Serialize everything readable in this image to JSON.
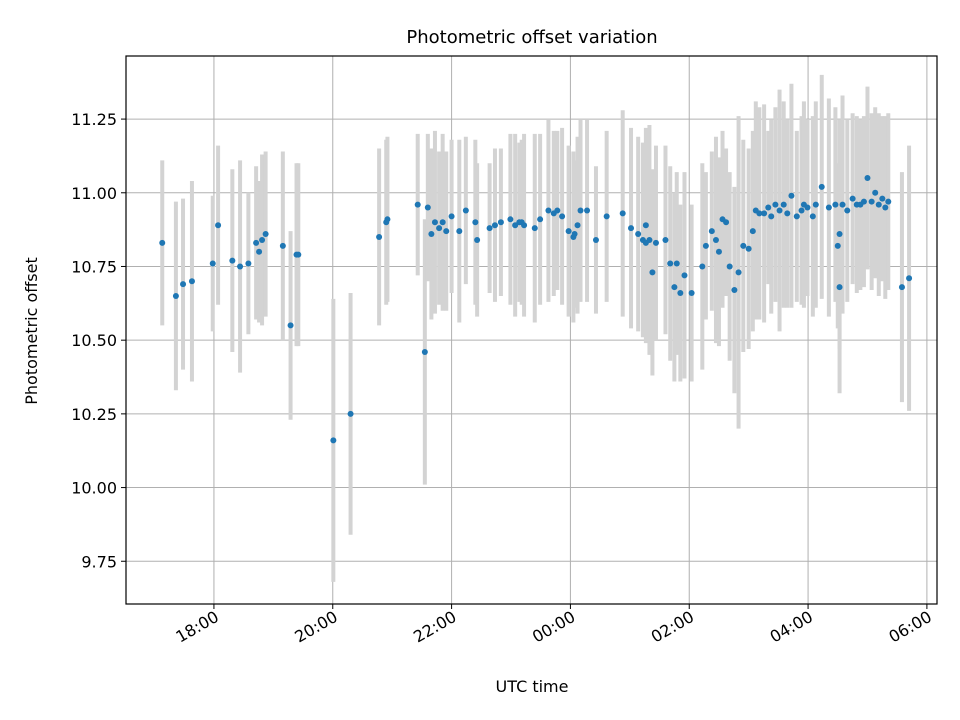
{
  "chart_data": {
    "type": "scatter",
    "title": "Photometric offset variation",
    "xlabel": "UTC time",
    "ylabel": "Photometric offset",
    "x_unit": "hours UTC (after 24:00 wraps to next day)",
    "xlim": [
      16.52,
      30.17
    ],
    "ylim": [
      9.605,
      11.464
    ],
    "x_ticks": [
      18,
      20,
      22,
      24,
      26,
      28,
      30
    ],
    "x_tick_labels": [
      "18:00",
      "20:00",
      "22:00",
      "00:00",
      "02:00",
      "04:00",
      "06:00"
    ],
    "y_ticks": [
      9.75,
      10.0,
      10.25,
      10.5,
      10.75,
      11.0,
      11.25
    ],
    "y_tick_labels": [
      "9.75",
      "10.00",
      "10.25",
      "10.50",
      "10.75",
      "11.00",
      "11.25"
    ],
    "grid": true,
    "colors": {
      "point": "#1f77b4",
      "errorbar": "#d3d3d3",
      "grid": "#b0b0b0"
    },
    "points": [
      [
        17.13,
        10.83,
        0.28
      ],
      [
        17.36,
        10.65,
        0.32
      ],
      [
        17.48,
        10.69,
        0.29
      ],
      [
        17.63,
        10.7,
        0.34
      ],
      [
        17.98,
        10.76,
        0.23
      ],
      [
        18.07,
        10.89,
        0.27
      ],
      [
        18.31,
        10.77,
        0.31
      ],
      [
        18.44,
        10.75,
        0.36
      ],
      [
        18.58,
        10.76,
        0.24
      ],
      [
        18.71,
        10.83,
        0.26
      ],
      [
        18.76,
        10.8,
        0.24
      ],
      [
        18.81,
        10.84,
        0.29
      ],
      [
        18.87,
        10.86,
        0.28
      ],
      [
        19.16,
        10.82,
        0.32
      ],
      [
        19.29,
        10.55,
        0.32
      ],
      [
        19.39,
        10.79,
        0.31
      ],
      [
        19.42,
        10.79,
        0.31
      ],
      [
        20.01,
        10.16,
        0.48
      ],
      [
        20.3,
        10.25,
        0.41
      ],
      [
        20.78,
        10.85,
        0.3
      ],
      [
        20.9,
        10.9,
        0.28
      ],
      [
        20.92,
        10.91,
        0.28
      ],
      [
        21.43,
        10.96,
        0.24
      ],
      [
        21.55,
        10.46,
        0.45
      ],
      [
        21.6,
        10.95,
        0.25
      ],
      [
        21.66,
        10.86,
        0.29
      ],
      [
        21.72,
        10.9,
        0.31
      ],
      [
        21.79,
        10.88,
        0.26
      ],
      [
        21.85,
        10.9,
        0.3
      ],
      [
        21.91,
        10.87,
        0.27
      ],
      [
        22.0,
        10.92,
        0.26
      ],
      [
        22.13,
        10.87,
        0.31
      ],
      [
        22.24,
        10.94,
        0.25
      ],
      [
        22.4,
        10.9,
        0.28
      ],
      [
        22.43,
        10.84,
        0.26
      ],
      [
        22.64,
        10.88,
        0.22
      ],
      [
        22.73,
        10.89,
        0.26
      ],
      [
        22.83,
        10.9,
        0.25
      ],
      [
        22.99,
        10.91,
        0.29
      ],
      [
        23.07,
        10.89,
        0.31
      ],
      [
        23.14,
        10.9,
        0.27
      ],
      [
        23.18,
        10.9,
        0.28
      ],
      [
        23.22,
        10.89,
        0.31
      ],
      [
        23.4,
        10.88,
        0.32
      ],
      [
        23.49,
        10.91,
        0.29
      ],
      [
        23.63,
        10.94,
        0.31
      ],
      [
        23.72,
        10.93,
        0.28
      ],
      [
        23.78,
        10.94,
        0.27
      ],
      [
        23.86,
        10.92,
        0.3
      ],
      [
        23.97,
        10.87,
        0.29
      ],
      [
        24.05,
        10.85,
        0.29
      ],
      [
        24.12,
        10.89,
        0.3
      ],
      [
        24.17,
        10.94,
        0.31
      ],
      [
        24.28,
        10.94,
        0.31
      ],
      [
        24.43,
        10.84,
        0.25
      ],
      [
        24.61,
        10.92,
        0.29
      ],
      [
        24.88,
        10.93,
        0.35
      ],
      [
        25.02,
        10.88,
        0.34
      ],
      [
        25.14,
        10.86,
        0.33
      ],
      [
        25.22,
        10.84,
        0.33
      ],
      [
        25.27,
        10.89,
        0.33
      ],
      [
        25.33,
        10.84,
        0.39
      ],
      [
        25.38,
        10.73,
        0.35
      ],
      [
        25.44,
        10.83,
        0.33
      ],
      [
        25.6,
        10.84,
        0.32
      ],
      [
        25.68,
        10.76,
        0.33
      ],
      [
        25.75,
        10.68,
        0.32
      ],
      [
        25.79,
        10.76,
        0.31
      ],
      [
        25.85,
        10.66,
        0.3
      ],
      [
        25.92,
        10.72,
        0.35
      ],
      [
        26.04,
        10.66,
        0.3
      ],
      [
        26.22,
        10.75,
        0.35
      ],
      [
        26.28,
        10.82,
        0.25
      ],
      [
        26.38,
        10.87,
        0.27
      ],
      [
        26.45,
        10.84,
        0.35
      ],
      [
        26.5,
        10.8,
        0.32
      ],
      [
        26.56,
        10.91,
        0.3
      ],
      [
        26.62,
        10.9,
        0.25
      ],
      [
        26.68,
        10.75,
        0.32
      ],
      [
        26.76,
        10.67,
        0.35
      ],
      [
        26.83,
        10.73,
        0.53
      ],
      [
        26.91,
        10.82,
        0.36
      ],
      [
        27.0,
        10.81,
        0.34
      ],
      [
        27.07,
        10.87,
        0.34
      ],
      [
        27.12,
        10.94,
        0.37
      ],
      [
        27.18,
        10.93,
        0.36
      ],
      [
        27.26,
        10.93,
        0.37
      ],
      [
        27.33,
        10.95,
        0.26
      ],
      [
        27.38,
        10.92,
        0.33
      ],
      [
        27.45,
        10.96,
        0.33
      ],
      [
        27.52,
        10.94,
        0.41
      ],
      [
        27.59,
        10.96,
        0.35
      ],
      [
        27.65,
        10.93,
        0.32
      ],
      [
        27.72,
        10.99,
        0.38
      ],
      [
        27.81,
        10.92,
        0.29
      ],
      [
        27.89,
        10.94,
        0.32
      ],
      [
        27.93,
        10.96,
        0.35
      ],
      [
        27.99,
        10.95,
        0.3
      ],
      [
        28.08,
        10.92,
        0.34
      ],
      [
        28.13,
        10.96,
        0.35
      ],
      [
        28.23,
        11.02,
        0.38
      ],
      [
        28.35,
        10.95,
        0.37
      ],
      [
        28.46,
        10.96,
        0.33
      ],
      [
        28.5,
        10.82,
        0.28
      ],
      [
        28.53,
        10.86,
        0.39
      ],
      [
        28.58,
        10.96,
        0.37
      ],
      [
        28.66,
        10.94,
        0.31
      ],
      [
        28.75,
        10.98,
        0.29
      ],
      [
        28.82,
        10.96,
        0.3
      ],
      [
        28.88,
        10.96,
        0.29
      ],
      [
        28.94,
        10.97,
        0.29
      ],
      [
        29.0,
        11.05,
        0.31
      ],
      [
        29.07,
        10.97,
        0.3
      ],
      [
        29.13,
        11.0,
        0.29
      ],
      [
        29.19,
        10.96,
        0.31
      ],
      [
        29.25,
        10.98,
        0.28
      ],
      [
        29.3,
        10.95,
        0.31
      ],
      [
        29.35,
        10.97,
        0.3
      ],
      [
        29.58,
        10.68,
        0.39
      ],
      [
        29.7,
        10.71,
        0.45
      ],
      [
        24.07,
        10.86,
        0.25
      ],
      [
        25.27,
        10.83,
        0.34
      ],
      [
        28.53,
        10.68,
        0.36
      ]
    ]
  }
}
